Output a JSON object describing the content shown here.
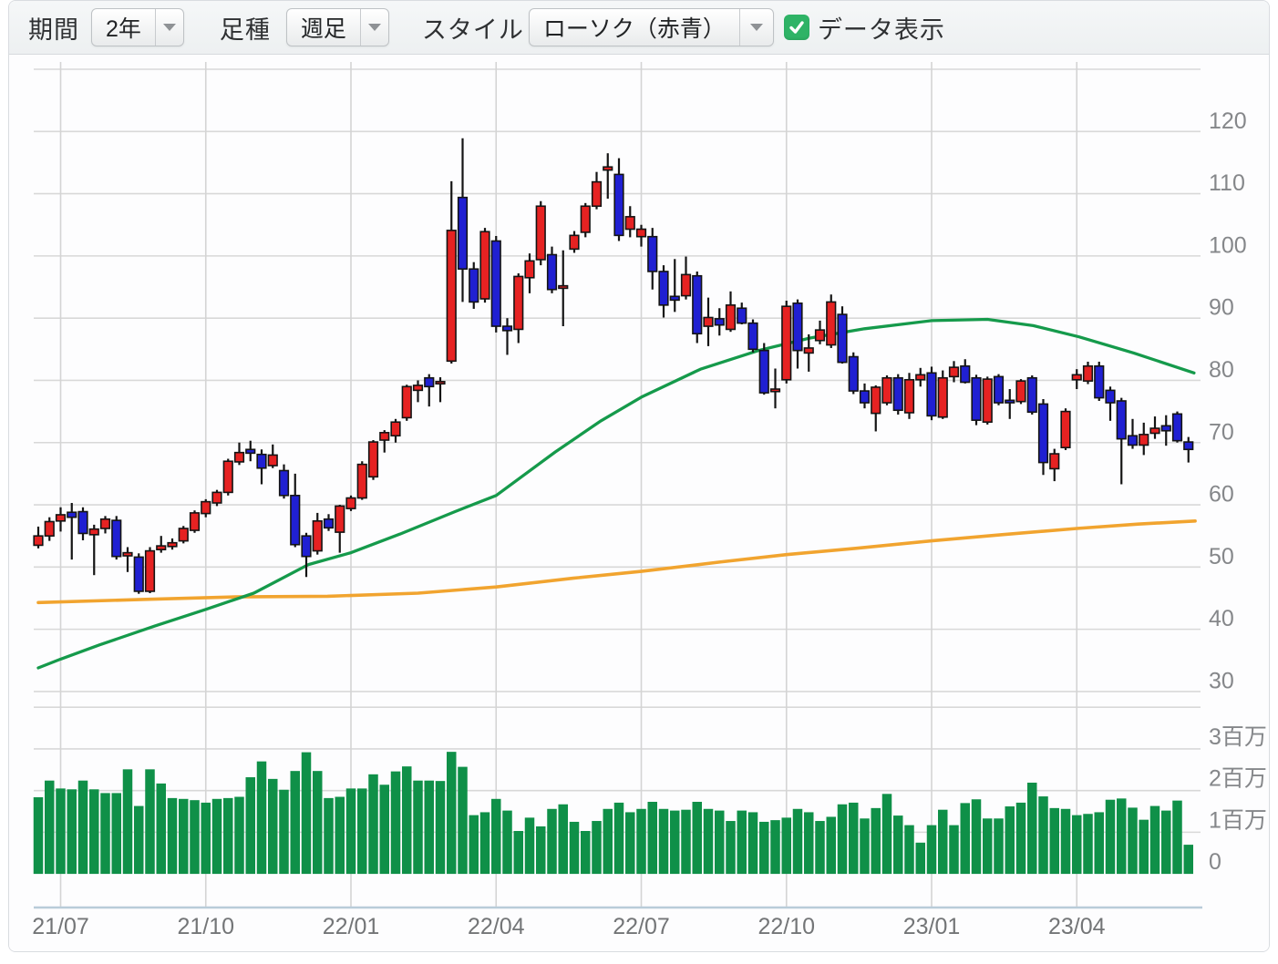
{
  "toolbar": {
    "period_label": "期間",
    "period_value": "2年",
    "bar_type_label": "足種",
    "bar_type_value": "週足",
    "style_label": "スタイル",
    "style_value": "ローソク（赤青）",
    "data_checkbox_label": "データ表示",
    "checkbox_checked": true,
    "checkbox_color": "#2eb366"
  },
  "chart_data": {
    "type": "candlestick",
    "subcharts": [
      "price-candles-with-moving-averages",
      "volume-bars"
    ],
    "x_axis": {
      "labels": [
        "21/07",
        "21/10",
        "22/01",
        "22/04",
        "22/07",
        "22/10",
        "23/01",
        "23/04"
      ],
      "tick_indices": [
        2,
        15,
        28,
        41,
        54,
        67,
        80,
        93
      ]
    },
    "price_axis": {
      "labeled_ticks": [
        120,
        110,
        100,
        90,
        80,
        70,
        60,
        50,
        40,
        30
      ],
      "gridlines": [
        130,
        120,
        110,
        100,
        90,
        80,
        70,
        60,
        50,
        40,
        30
      ],
      "min": 30,
      "max": 130,
      "position": "right"
    },
    "volume_axis": {
      "labels": [
        "3百万",
        "2百万",
        "1百万",
        "0"
      ],
      "label_values": [
        3,
        2,
        1,
        0
      ],
      "gridline_values": [
        4,
        3,
        2,
        1
      ],
      "unit": "百万",
      "max": 4
    },
    "colors": {
      "up": "#e62222",
      "down": "#2020d2",
      "candle_outline": "#141414",
      "ma_short": "#159a4b",
      "ma_long": "#f1a42f",
      "volume": "#0f9048",
      "grid": "#d8d8d8",
      "vgrid": "#d4d4d4",
      "axis_line": "#b9ccd9",
      "tick_text": "#85878a",
      "date_text": "#737577"
    },
    "legend": "red = bullish week (close>open), blue = bearish week",
    "candles_columns": [
      "open",
      "high",
      "low",
      "close",
      "volume_millions"
    ],
    "candles": [
      [
        53.5,
        56.5,
        53.0,
        55.0,
        1.84
      ],
      [
        55.0,
        58.0,
        54.2,
        57.3,
        2.24
      ],
      [
        57.4,
        59.6,
        55.7,
        58.4,
        2.05
      ],
      [
        58.8,
        60.3,
        51.2,
        58.0,
        2.03
      ],
      [
        58.9,
        59.6,
        54.3,
        55.4,
        2.24
      ],
      [
        55.2,
        56.8,
        48.7,
        56.1,
        2.03
      ],
      [
        56.2,
        58.2,
        55.4,
        57.7,
        1.94
      ],
      [
        57.5,
        58.2,
        51.2,
        51.7,
        1.94
      ],
      [
        51.8,
        53.2,
        49.2,
        52.3,
        2.51
      ],
      [
        51.6,
        52.2,
        45.7,
        46.1,
        1.63
      ],
      [
        46.1,
        53.2,
        45.8,
        52.6,
        2.51
      ],
      [
        52.8,
        55.0,
        52.3,
        53.4,
        2.17
      ],
      [
        53.3,
        54.6,
        52.8,
        53.9,
        1.82
      ],
      [
        54.2,
        56.6,
        53.8,
        56.2,
        1.8
      ],
      [
        55.9,
        59.1,
        55.5,
        58.7,
        1.77
      ],
      [
        58.6,
        60.9,
        58.0,
        60.5,
        1.71
      ],
      [
        60.3,
        62.4,
        59.8,
        62.0,
        1.8
      ],
      [
        62.0,
        67.4,
        61.5,
        67.0,
        1.82
      ],
      [
        66.9,
        70.0,
        66.4,
        68.4,
        1.85
      ],
      [
        68.9,
        70.3,
        67.0,
        68.3,
        2.32
      ],
      [
        68.1,
        68.9,
        63.3,
        65.9,
        2.7
      ],
      [
        66.3,
        69.7,
        65.9,
        68.0,
        2.28
      ],
      [
        65.5,
        66.5,
        61.0,
        61.5,
        2.02
      ],
      [
        61.5,
        65.0,
        53.2,
        53.6,
        2.47
      ],
      [
        55.0,
        55.5,
        48.4,
        51.7,
        2.92
      ],
      [
        52.6,
        58.7,
        52.0,
        57.4,
        2.47
      ],
      [
        57.7,
        58.5,
        55.8,
        56.3,
        1.82
      ],
      [
        55.6,
        60.0,
        52.3,
        59.8,
        1.85
      ],
      [
        59.4,
        61.5,
        59.0,
        61.1,
        2.05
      ],
      [
        61.1,
        67.0,
        60.8,
        66.5,
        2.05
      ],
      [
        64.5,
        70.4,
        64.0,
        70.1,
        2.39
      ],
      [
        70.4,
        72.0,
        68.4,
        71.6,
        2.14
      ],
      [
        71.1,
        73.8,
        70.0,
        73.3,
        2.46
      ],
      [
        74.0,
        79.3,
        73.5,
        79.0,
        2.58
      ],
      [
        78.4,
        80.0,
        76.5,
        79.2,
        2.24
      ],
      [
        80.4,
        81.0,
        75.8,
        79.0,
        2.24
      ],
      [
        79.5,
        80.5,
        76.5,
        79.8,
        2.23
      ],
      [
        83.1,
        112.0,
        82.7,
        104.1,
        2.93
      ],
      [
        109.4,
        118.9,
        92.6,
        97.9,
        2.57
      ],
      [
        97.9,
        99.0,
        91.5,
        92.6,
        1.41
      ],
      [
        93.1,
        104.5,
        92.5,
        103.9,
        1.48
      ],
      [
        102.4,
        103.2,
        87.7,
        88.7,
        1.8
      ],
      [
        88.7,
        90.0,
        84.1,
        88.0,
        1.52
      ],
      [
        88.2,
        97.2,
        86.0,
        96.7,
        1.03
      ],
      [
        96.5,
        100.4,
        94.0,
        99.2,
        1.35
      ],
      [
        99.4,
        108.8,
        98.5,
        108.0,
        1.14
      ],
      [
        100.2,
        101.5,
        94.0,
        94.6,
        1.56
      ],
      [
        94.8,
        100.9,
        88.7,
        95.2,
        1.67
      ],
      [
        101.1,
        104.0,
        100.5,
        103.3,
        1.25
      ],
      [
        103.8,
        108.5,
        103.0,
        108.0,
        1.03
      ],
      [
        108.0,
        113.5,
        107.5,
        111.9,
        1.27
      ],
      [
        113.8,
        116.5,
        109.2,
        114.3,
        1.56
      ],
      [
        113.1,
        115.7,
        102.4,
        103.3,
        1.71
      ],
      [
        104.3,
        108.0,
        103.0,
        106.3,
        1.48
      ],
      [
        103.1,
        105.0,
        101.5,
        104.3,
        1.56
      ],
      [
        103.1,
        104.5,
        94.6,
        97.5,
        1.73
      ],
      [
        97.5,
        98.5,
        90.1,
        92.1,
        1.56
      ],
      [
        93.5,
        99.5,
        91.0,
        92.9,
        1.52
      ],
      [
        93.6,
        99.9,
        93.0,
        97.0,
        1.54
      ],
      [
        96.8,
        97.5,
        86.0,
        87.5,
        1.73
      ],
      [
        88.7,
        93.3,
        85.5,
        90.1,
        1.56
      ],
      [
        89.9,
        91.6,
        87.2,
        88.9,
        1.52
      ],
      [
        88.2,
        94.3,
        87.8,
        92.1,
        1.27
      ],
      [
        91.6,
        92.5,
        89.0,
        89.2,
        1.52
      ],
      [
        89.2,
        89.8,
        84.5,
        85.0,
        1.48
      ],
      [
        84.8,
        86.0,
        77.7,
        78.0,
        1.25
      ],
      [
        78.2,
        81.9,
        75.5,
        78.6,
        1.29
      ],
      [
        80.1,
        92.8,
        79.5,
        91.9,
        1.35
      ],
      [
        92.4,
        93.0,
        81.9,
        84.8,
        1.56
      ],
      [
        84.4,
        87.4,
        81.4,
        85.2,
        1.48
      ],
      [
        86.4,
        89.6,
        85.8,
        88.1,
        1.27
      ],
      [
        85.7,
        93.8,
        85.2,
        92.6,
        1.37
      ],
      [
        90.6,
        91.9,
        82.7,
        82.9,
        1.67
      ],
      [
        83.8,
        84.5,
        77.8,
        78.3,
        1.71
      ],
      [
        78.3,
        79.5,
        75.5,
        76.4,
        1.33
      ],
      [
        74.7,
        79.2,
        71.8,
        78.9,
        1.58
      ],
      [
        76.4,
        80.8,
        76.0,
        80.4,
        1.92
      ],
      [
        80.4,
        81.0,
        74.5,
        75.2,
        1.4
      ],
      [
        74.8,
        81.2,
        73.8,
        80.1,
        1.17
      ],
      [
        80.1,
        82.0,
        79.0,
        80.9,
        0.75
      ],
      [
        81.2,
        82.2,
        73.6,
        74.3,
        1.17
      ],
      [
        74.1,
        81.6,
        73.8,
        80.4,
        1.54
      ],
      [
        80.6,
        83.1,
        79.7,
        82.1,
        1.17
      ],
      [
        82.3,
        83.4,
        79.5,
        79.7,
        1.7
      ],
      [
        80.4,
        80.9,
        72.8,
        73.6,
        1.79
      ],
      [
        73.3,
        80.6,
        72.9,
        80.2,
        1.33
      ],
      [
        80.6,
        81.0,
        76.0,
        76.4,
        1.33
      ],
      [
        76.8,
        78.6,
        73.8,
        76.4,
        1.62
      ],
      [
        76.6,
        80.2,
        76.2,
        79.9,
        1.71
      ],
      [
        80.4,
        80.8,
        74.5,
        74.9,
        2.19
      ],
      [
        76.2,
        77.0,
        64.8,
        66.8,
        1.86
      ],
      [
        65.8,
        69.0,
        63.8,
        68.2,
        1.58
      ],
      [
        69.2,
        75.5,
        68.8,
        75.0,
        1.56
      ],
      [
        80.1,
        81.8,
        78.6,
        80.9,
        1.41
      ],
      [
        79.9,
        83.0,
        79.4,
        82.3,
        1.44
      ],
      [
        82.3,
        83.0,
        76.7,
        77.2,
        1.48
      ],
      [
        78.4,
        79.0,
        73.5,
        76.4,
        1.78
      ],
      [
        76.7,
        77.2,
        63.3,
        70.6,
        1.81
      ],
      [
        71.1,
        73.8,
        69.0,
        69.6,
        1.59
      ],
      [
        69.6,
        73.2,
        68.0,
        71.3,
        1.3
      ],
      [
        71.5,
        74.2,
        70.6,
        72.3,
        1.63
      ],
      [
        72.7,
        74.4,
        69.5,
        71.9,
        1.52
      ],
      [
        74.6,
        75.0,
        70.0,
        70.3,
        1.76
      ],
      [
        70.1,
        70.9,
        66.8,
        68.9,
        0.7
      ]
    ],
    "ma_short_points": [
      [
        0,
        33.8
      ],
      [
        2,
        35.2
      ],
      [
        5.5,
        37.5
      ],
      [
        10.4,
        40.5
      ],
      [
        15,
        43.2
      ],
      [
        19.3,
        45.8
      ],
      [
        24.2,
        50.4
      ],
      [
        28,
        52.3
      ],
      [
        32.4,
        55.3
      ],
      [
        37.3,
        58.9
      ],
      [
        41,
        61.5
      ],
      [
        46.3,
        68.5
      ],
      [
        50.4,
        73.5
      ],
      [
        54,
        77.3
      ],
      [
        59.3,
        81.8
      ],
      [
        64.5,
        84.8
      ],
      [
        69.1,
        86.8
      ],
      [
        74,
        88.3
      ],
      [
        80,
        89.6
      ],
      [
        85,
        89.8
      ],
      [
        89.1,
        88.8
      ],
      [
        93.2,
        87.0
      ],
      [
        98.1,
        84.4
      ],
      [
        103.5,
        81.2
      ]
    ],
    "ma_long_points": [
      [
        0,
        44.3
      ],
      [
        9.6,
        44.8
      ],
      [
        17.7,
        45.2
      ],
      [
        25.9,
        45.3
      ],
      [
        34,
        45.8
      ],
      [
        41,
        46.8
      ],
      [
        47.9,
        48.2
      ],
      [
        54,
        49.3
      ],
      [
        61,
        50.8
      ],
      [
        67,
        52.0
      ],
      [
        73.2,
        53.0
      ],
      [
        80,
        54.2
      ],
      [
        86.3,
        55.2
      ],
      [
        93,
        56.2
      ],
      [
        98.5,
        56.9
      ],
      [
        103.6,
        57.4
      ]
    ]
  }
}
